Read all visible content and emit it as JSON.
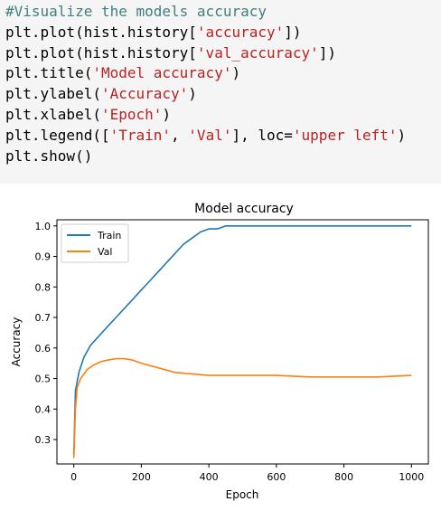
{
  "code_cell": {
    "lines": [
      [
        {
          "text": "#Visualize the models accuracy",
          "cls": "tok-comment"
        }
      ],
      [
        {
          "text": "plt.plot(hist.history[",
          "cls": ""
        },
        {
          "text": "'accuracy'",
          "cls": "tok-string"
        },
        {
          "text": "])",
          "cls": ""
        }
      ],
      [
        {
          "text": "plt.plot(hist.history[",
          "cls": ""
        },
        {
          "text": "'val_accuracy'",
          "cls": "tok-string"
        },
        {
          "text": "])",
          "cls": ""
        }
      ],
      [
        {
          "text": "plt.title(",
          "cls": ""
        },
        {
          "text": "'Model accuracy'",
          "cls": "tok-string"
        },
        {
          "text": ")",
          "cls": ""
        }
      ],
      [
        {
          "text": "plt.ylabel(",
          "cls": ""
        },
        {
          "text": "'Accuracy'",
          "cls": "tok-string"
        },
        {
          "text": ")",
          "cls": ""
        }
      ],
      [
        {
          "text": "plt.xlabel(",
          "cls": ""
        },
        {
          "text": "'Epoch'",
          "cls": "tok-string"
        },
        {
          "text": ")",
          "cls": ""
        }
      ],
      [
        {
          "text": "plt.legend([",
          "cls": ""
        },
        {
          "text": "'Train'",
          "cls": "tok-string"
        },
        {
          "text": ", ",
          "cls": ""
        },
        {
          "text": "'Val'",
          "cls": "tok-string"
        },
        {
          "text": "], loc=",
          "cls": ""
        },
        {
          "text": "'upper left'",
          "cls": "tok-string"
        },
        {
          "text": ")",
          "cls": ""
        }
      ],
      [
        {
          "text": "plt.show()",
          "cls": ""
        }
      ]
    ]
  },
  "chart_data": {
    "type": "line",
    "title": "Model accuracy",
    "xlabel": "Epoch",
    "ylabel": "Accuracy",
    "xlim": [
      -50,
      1050
    ],
    "ylim": [
      0.22,
      1.02
    ],
    "xticks": [
      0,
      200,
      400,
      600,
      800,
      1000
    ],
    "yticks": [
      0.3,
      0.4,
      0.5,
      0.6,
      0.7,
      0.8,
      0.9,
      1.0
    ],
    "grid": false,
    "legend_position": "upper left",
    "series": [
      {
        "name": "Train",
        "color": "#1f77b4",
        "x": [
          0,
          5,
          15,
          30,
          50,
          75,
          100,
          125,
          150,
          175,
          200,
          225,
          250,
          275,
          300,
          325,
          350,
          375,
          400,
          425,
          450,
          500,
          600,
          700,
          800,
          900,
          1000
        ],
        "values": [
          0.25,
          0.46,
          0.52,
          0.57,
          0.61,
          0.64,
          0.67,
          0.7,
          0.73,
          0.76,
          0.79,
          0.82,
          0.85,
          0.88,
          0.91,
          0.94,
          0.96,
          0.98,
          0.99,
          0.99,
          1.0,
          1.0,
          1.0,
          1.0,
          1.0,
          1.0,
          1.0
        ]
      },
      {
        "name": "Val",
        "color": "#ff7f0e",
        "x": [
          0,
          5,
          10,
          20,
          40,
          60,
          80,
          100,
          125,
          150,
          175,
          200,
          250,
          300,
          350,
          400,
          500,
          600,
          700,
          800,
          900,
          1000
        ],
        "values": [
          0.24,
          0.4,
          0.47,
          0.5,
          0.53,
          0.545,
          0.555,
          0.56,
          0.565,
          0.565,
          0.56,
          0.55,
          0.535,
          0.52,
          0.515,
          0.51,
          0.51,
          0.51,
          0.505,
          0.505,
          0.505,
          0.51
        ]
      }
    ]
  }
}
